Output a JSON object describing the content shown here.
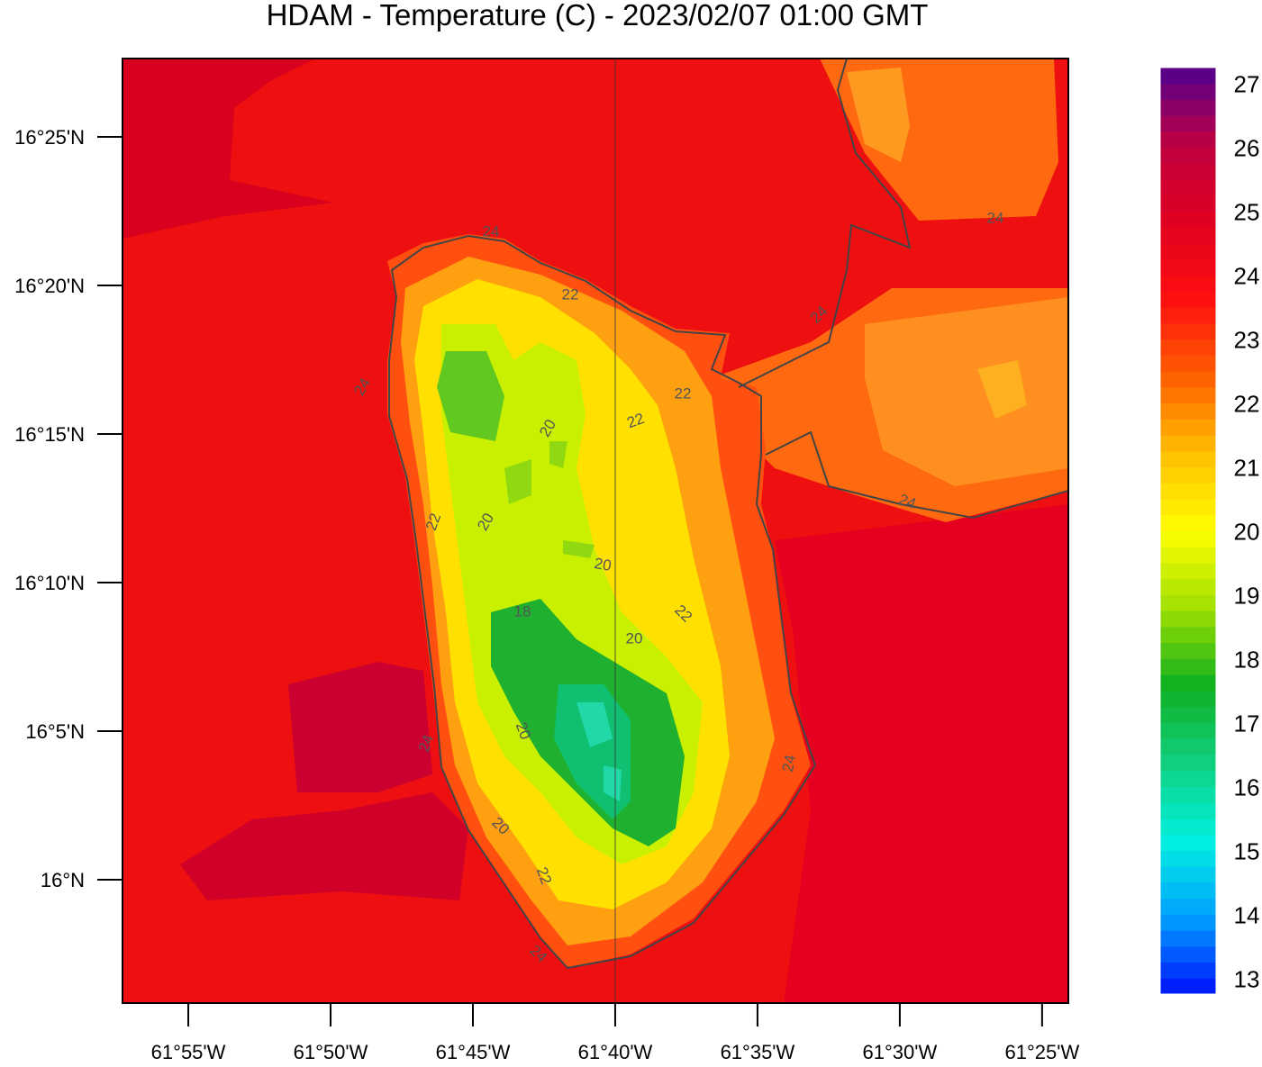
{
  "map": {
    "title": "HDAM - Temperature (C)  -  2023/02/07  01:00 GMT",
    "lat_range": [
      15.9308,
      16.4606
    ],
    "lon_range": [
      -61.9552,
      -61.4013
    ],
    "lat_ticks": [
      {
        "value": 16.416667,
        "label": "16°25'N"
      },
      {
        "value": 16.333333,
        "label": "16°20'N"
      },
      {
        "value": 16.25,
        "label": "16°15'N"
      },
      {
        "value": 16.166667,
        "label": "16°10'N"
      },
      {
        "value": 16.083333,
        "label": "16°5'N"
      },
      {
        "value": 16,
        "label": "16°N"
      }
    ],
    "lon_ticks": [
      {
        "value": -61.916667,
        "label": "61°55'W"
      },
      {
        "value": -61.833333,
        "label": "61°50'W"
      },
      {
        "value": -61.75,
        "label": "61°45'W"
      },
      {
        "value": -61.666667,
        "label": "61°40'W"
      },
      {
        "value": -61.583333,
        "label": "61°35'W"
      },
      {
        "value": -61.5,
        "label": "61°30'W"
      },
      {
        "value": -61.416667,
        "label": "61°25'W"
      }
    ],
    "colorbar": {
      "range": [
        12.75,
        27.25
      ],
      "ticks": [
        13,
        14,
        15,
        16,
        17,
        18,
        19,
        20,
        21,
        22,
        23,
        24,
        25,
        26,
        27
      ],
      "colormap": [
        "#0010ff",
        "#00a0ff",
        "#00f0e0",
        "#10d080",
        "#10b020",
        "#a0e000",
        "#ffff00",
        "#ffc000",
        "#ff6000",
        "#ff1010",
        "#e00020",
        "#c00040",
        "#500090"
      ]
    },
    "contour_labels": [
      24,
      22,
      24,
      24,
      24,
      22,
      22,
      20,
      22,
      20,
      20,
      22,
      18,
      20,
      20,
      24,
      24,
      20,
      22,
      24,
      24
    ]
  }
}
